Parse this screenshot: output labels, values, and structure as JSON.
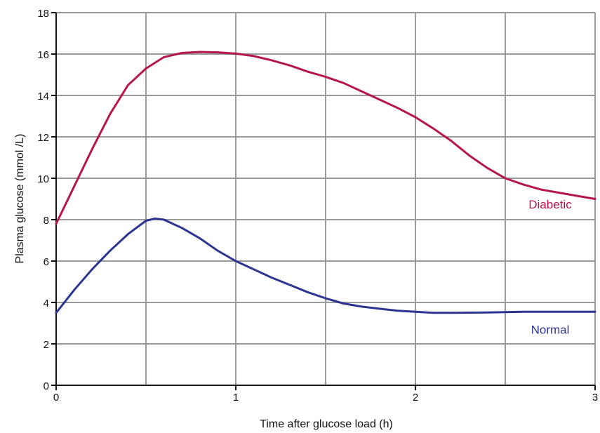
{
  "chart_data": {
    "type": "line",
    "title": "",
    "xlabel": "Time after glucose load (h)",
    "ylabel": "Plasma glucose (mmol /L)",
    "xlim": [
      0,
      3
    ],
    "ylim": [
      0,
      18
    ],
    "x_ticks": [
      "0",
      "1",
      "2",
      "3"
    ],
    "y_ticks": [
      "0",
      "2",
      "4",
      "6",
      "8",
      "10",
      "12",
      "14",
      "16",
      "18"
    ],
    "grid": true,
    "series": [
      {
        "name": "Diabetic",
        "color": "#b5174b",
        "points": [
          [
            0,
            7.8
          ],
          [
            0.1,
            9.6
          ],
          [
            0.2,
            11.4
          ],
          [
            0.3,
            13.1
          ],
          [
            0.4,
            14.5
          ],
          [
            0.5,
            15.3
          ],
          [
            0.6,
            15.85
          ],
          [
            0.7,
            16.05
          ],
          [
            0.8,
            16.1
          ],
          [
            0.9,
            16.08
          ],
          [
            1.0,
            16.02
          ],
          [
            1.1,
            15.9
          ],
          [
            1.2,
            15.7
          ],
          [
            1.3,
            15.45
          ],
          [
            1.4,
            15.15
          ],
          [
            1.5,
            14.9
          ],
          [
            1.6,
            14.6
          ],
          [
            1.7,
            14.2
          ],
          [
            1.8,
            13.8
          ],
          [
            1.9,
            13.4
          ],
          [
            2.0,
            12.95
          ],
          [
            2.1,
            12.4
          ],
          [
            2.2,
            11.8
          ],
          [
            2.3,
            11.1
          ],
          [
            2.4,
            10.5
          ],
          [
            2.5,
            10.0
          ],
          [
            2.6,
            9.7
          ],
          [
            2.7,
            9.45
          ],
          [
            2.8,
            9.3
          ],
          [
            2.9,
            9.15
          ],
          [
            3.0,
            9.0
          ]
        ]
      },
      {
        "name": "Normal",
        "color": "#2c3590",
        "points": [
          [
            0,
            3.5
          ],
          [
            0.1,
            4.6
          ],
          [
            0.2,
            5.6
          ],
          [
            0.3,
            6.5
          ],
          [
            0.4,
            7.3
          ],
          [
            0.5,
            7.95
          ],
          [
            0.55,
            8.05
          ],
          [
            0.6,
            8.0
          ],
          [
            0.7,
            7.6
          ],
          [
            0.8,
            7.1
          ],
          [
            0.9,
            6.5
          ],
          [
            1.0,
            6.0
          ],
          [
            1.1,
            5.6
          ],
          [
            1.2,
            5.2
          ],
          [
            1.3,
            4.85
          ],
          [
            1.4,
            4.5
          ],
          [
            1.5,
            4.2
          ],
          [
            1.6,
            3.95
          ],
          [
            1.7,
            3.8
          ],
          [
            1.8,
            3.7
          ],
          [
            1.9,
            3.6
          ],
          [
            2.0,
            3.55
          ],
          [
            2.1,
            3.5
          ],
          [
            2.2,
            3.5
          ],
          [
            2.4,
            3.52
          ],
          [
            2.6,
            3.55
          ],
          [
            2.8,
            3.55
          ],
          [
            3.0,
            3.55
          ]
        ]
      }
    ]
  }
}
